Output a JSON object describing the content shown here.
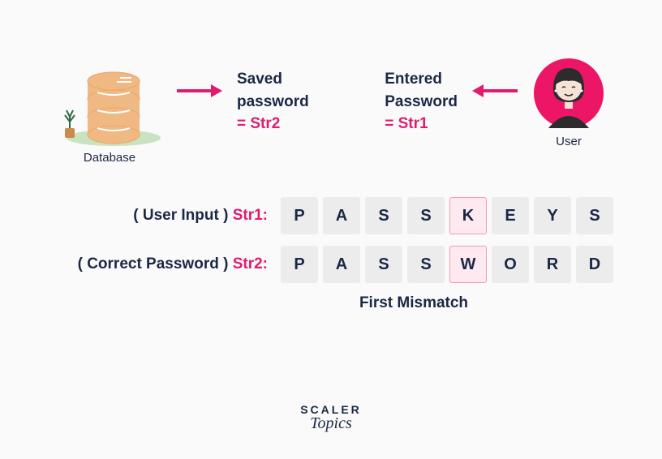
{
  "colors": {
    "text": "#1a2845",
    "accent": "#e31b6d",
    "cell_bg": "#ececec",
    "mismatch_bg": "#fde9ef",
    "mismatch_border": "#f19ab8",
    "db_fill": "#f0b882",
    "db_stroke": "#e8a968",
    "db_ground": "#c9e2c0",
    "plant_pot": "#c98a4a",
    "plant_leaf": "#2e6b3f",
    "user_circle": "#ed1566",
    "user_skin": "#f6e3d5",
    "user_hair": "#2c2c2c",
    "bg": "#fafafa"
  },
  "database": {
    "caption": "Database"
  },
  "saved": {
    "line1": "Saved",
    "line2": "password",
    "eq": "= Str2"
  },
  "entered": {
    "line1": "Entered",
    "line2": "Password",
    "eq": "= Str1"
  },
  "user": {
    "caption": "User"
  },
  "row1": {
    "prefix": "( User Input ) ",
    "name": "Str1:",
    "cells": [
      "P",
      "A",
      "S",
      "S",
      "K",
      "E",
      "Y",
      "S"
    ]
  },
  "row2": {
    "prefix": "( Correct Password ) ",
    "name": "Str2:",
    "cells": [
      "P",
      "A",
      "S",
      "S",
      "W",
      "O",
      "R",
      "D"
    ]
  },
  "mismatch_index": 4,
  "mismatch_label": "First Mismatch",
  "logo": {
    "line1": "SCALER",
    "line2": "Topics"
  }
}
